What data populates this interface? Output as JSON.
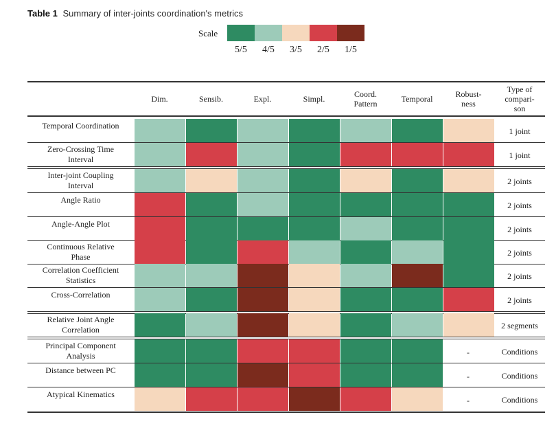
{
  "caption": {
    "label": "Table 1",
    "text": "Summary of inter-joints coordination's metrics"
  },
  "scale": {
    "label": "Scale",
    "levels": [
      {
        "key": "5",
        "text": "5/5",
        "color": "#2e8b62"
      },
      {
        "key": "4",
        "text": "4/5",
        "color": "#9dcbb9"
      },
      {
        "key": "3",
        "text": "3/5",
        "color": "#f6d8bd"
      },
      {
        "key": "2",
        "text": "2/5",
        "color": "#d54049"
      },
      {
        "key": "1",
        "text": "1/5",
        "color": "#7b2b1d"
      }
    ]
  },
  "columns": [
    {
      "lines": [
        "Dim."
      ]
    },
    {
      "lines": [
        "Sensib."
      ]
    },
    {
      "lines": [
        "Expl."
      ]
    },
    {
      "lines": [
        "Simpl."
      ]
    },
    {
      "lines": [
        "Coord.",
        "Pattern"
      ]
    },
    {
      "lines": [
        "Temporal"
      ]
    },
    {
      "lines": [
        "Robust-",
        "ness"
      ]
    },
    {
      "lines": [
        "Type of",
        "compari-",
        "son"
      ]
    }
  ],
  "rows": [
    {
      "name": [
        "Temporal Coordination"
      ],
      "scores": [
        "4",
        "5",
        "4",
        "5",
        "4",
        "5",
        "3"
      ],
      "comparison": "1 joint"
    },
    {
      "name": [
        "Zero-Crossing Time",
        "Interval"
      ],
      "scores": [
        "4",
        "2",
        "4",
        "5",
        "2",
        "2",
        "2"
      ],
      "comparison": "1 joint"
    },
    {
      "name": [
        "Inter-joint Coupling",
        "Interval"
      ],
      "scores": [
        "4",
        "3",
        "4",
        "5",
        "3",
        "5",
        "3"
      ],
      "comparison": "2 joints"
    },
    {
      "name": [
        "Angle Ratio"
      ],
      "scores": [
        "2",
        "5",
        "4",
        "5",
        "5",
        "5",
        "5"
      ],
      "comparison": "2 joints"
    },
    {
      "name": [
        "Angle-Angle Plot"
      ],
      "scores": [
        "2",
        "5",
        "5",
        "5",
        "4",
        "5",
        "5"
      ],
      "comparison": "2 joints"
    },
    {
      "name": [
        "Continuous Relative",
        "Phase"
      ],
      "scores": [
        "2",
        "5",
        "2",
        "4",
        "5",
        "4",
        "5"
      ],
      "comparison": "2 joints"
    },
    {
      "name": [
        "Correlation Coefficient",
        "Statistics"
      ],
      "scores": [
        "4",
        "4",
        "1",
        "3",
        "4",
        "1",
        "5"
      ],
      "comparison": "2 joints"
    },
    {
      "name": [
        "Cross-Correlation"
      ],
      "scores": [
        "4",
        "5",
        "1",
        "3",
        "5",
        "5",
        "2"
      ],
      "comparison": "2 joints"
    },
    {
      "name": [
        "Relative Joint Angle",
        "Correlation"
      ],
      "scores": [
        "5",
        "4",
        "1",
        "3",
        "5",
        "4",
        "3"
      ],
      "comparison": "2 segments"
    },
    {
      "name": [
        "Principal Component",
        "Analysis"
      ],
      "scores": [
        "5",
        "5",
        "2",
        "2",
        "5",
        "5",
        "-"
      ],
      "comparison": "Conditions"
    },
    {
      "name": [
        "Distance between PC"
      ],
      "scores": [
        "5",
        "5",
        "1",
        "2",
        "5",
        "5",
        "-"
      ],
      "comparison": "Conditions"
    },
    {
      "name": [
        "Atypical Kinematics"
      ],
      "scores": [
        "3",
        "2",
        "2",
        "1",
        "2",
        "3",
        "-"
      ],
      "comparison": "Conditions"
    }
  ]
}
